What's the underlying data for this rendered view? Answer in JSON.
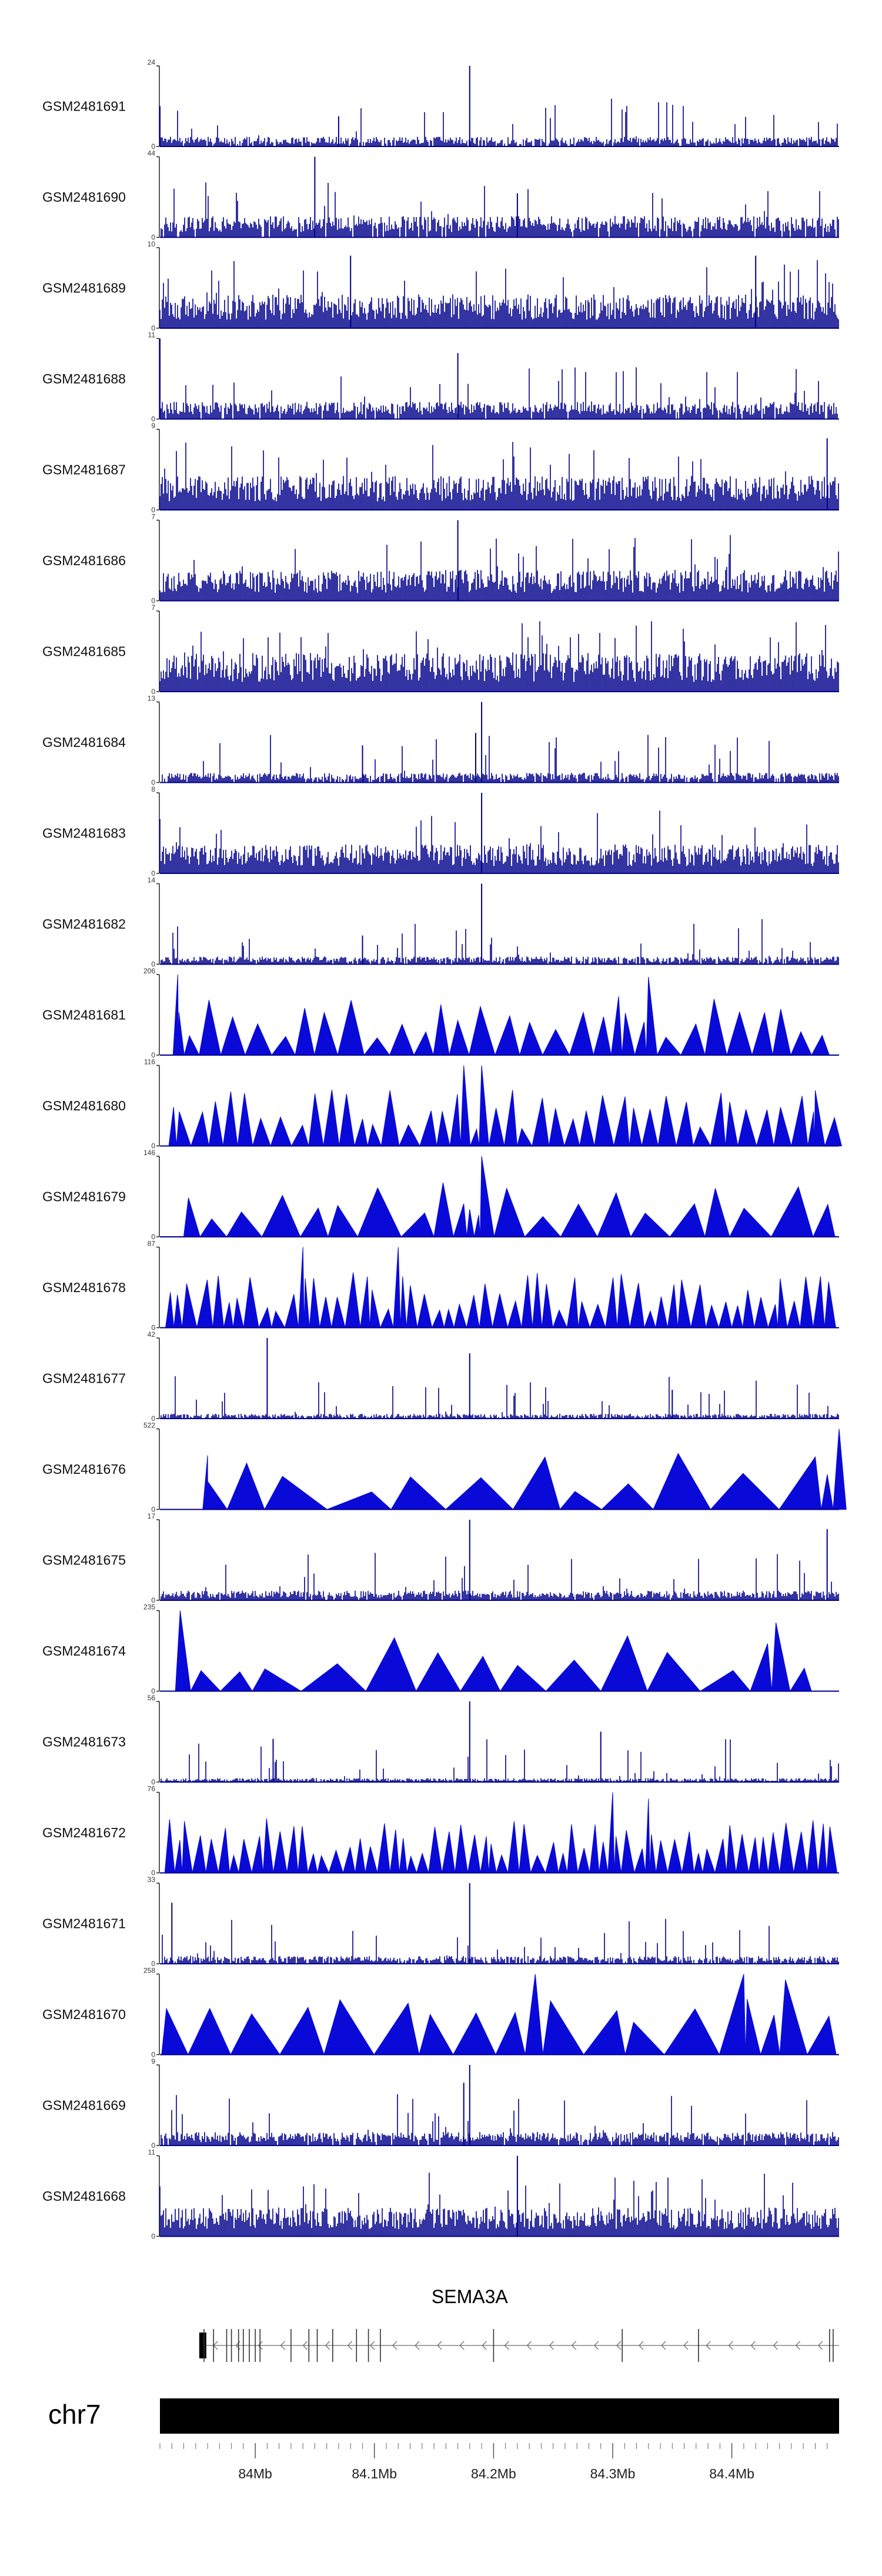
{
  "chart_data": {
    "type": "genome-coverage-tracks",
    "chromosome": "chr7",
    "region_mb": [
      83.92,
      84.49
    ],
    "gene": {
      "name": "SEMA3A",
      "strand": "-",
      "start_mb": 83.955,
      "end_mb": 84.49,
      "exons_mb": [
        83.957,
        83.965,
        83.976,
        83.98,
        83.986,
        83.99,
        83.995,
        84.0,
        84.004,
        84.03,
        84.045,
        84.052,
        84.065,
        84.085,
        84.095,
        84.105,
        84.2,
        84.308,
        84.372,
        84.482,
        84.485
      ]
    },
    "x_ticks": [
      {
        "value": 84.0,
        "label": "84Mb"
      },
      {
        "value": 84.1,
        "label": "84.1Mb"
      },
      {
        "value": 84.2,
        "label": "84.2Mb"
      },
      {
        "value": 84.3,
        "label": "84.3Mb"
      },
      {
        "value": 84.4,
        "label": "84.4Mb"
      }
    ],
    "tracks": [
      {
        "sample": "GSM2481691",
        "ymax": 24,
        "ymin": 0,
        "style": "bar",
        "density": 0.9,
        "base": 0.1,
        "peaks": [
          [
            84.18,
            24
          ],
          [
            83.92,
            12
          ],
          [
            84.07,
            9
          ]
        ]
      },
      {
        "sample": "GSM2481690",
        "ymax": 44,
        "ymin": 0,
        "style": "bar",
        "density": 0.95,
        "base": 0.22,
        "peaks": [
          [
            84.05,
            44
          ],
          [
            84.22,
            24
          ]
        ]
      },
      {
        "sample": "GSM2481689",
        "ymax": 10,
        "ymin": 0,
        "style": "bar",
        "density": 1.0,
        "base": 0.35,
        "peaks": [
          [
            84.08,
            9
          ],
          [
            84.42,
            9
          ]
        ]
      },
      {
        "sample": "GSM2481688",
        "ymax": 11,
        "ymin": 0,
        "style": "bar",
        "density": 0.95,
        "base": 0.18,
        "peaks": [
          [
            83.92,
            11
          ],
          [
            84.17,
            9
          ]
        ]
      },
      {
        "sample": "GSM2481687",
        "ymax": 9,
        "ymin": 0,
        "style": "bar",
        "density": 1.0,
        "base": 0.35,
        "peaks": [
          [
            84.48,
            8
          ]
        ]
      },
      {
        "sample": "GSM2481686",
        "ymax": 7,
        "ymin": 0,
        "style": "bar",
        "density": 1.0,
        "base": 0.32,
        "peaks": [
          [
            84.17,
            7
          ]
        ]
      },
      {
        "sample": "GSM2481685",
        "ymax": 7,
        "ymin": 0,
        "style": "bar",
        "density": 1.0,
        "base": 0.4,
        "peaks": []
      },
      {
        "sample": "GSM2481684",
        "ymax": 13,
        "ymin": 0,
        "style": "bar",
        "density": 0.9,
        "base": 0.1,
        "peaks": [
          [
            84.19,
            13
          ],
          [
            84.185,
            8
          ],
          [
            84.09,
            6
          ]
        ]
      },
      {
        "sample": "GSM2481683",
        "ymax": 8,
        "ymin": 0,
        "style": "bar",
        "density": 1.0,
        "base": 0.3,
        "peaks": [
          [
            84.19,
            8
          ]
        ]
      },
      {
        "sample": "GSM2481682",
        "ymax": 14,
        "ymin": 0,
        "style": "bar",
        "density": 0.9,
        "base": 0.08,
        "peaks": [
          [
            84.19,
            14
          ],
          [
            84.09,
            5
          ]
        ]
      },
      {
        "sample": "GSM2481681",
        "ymax": 206,
        "ymin": 0,
        "style": "spike",
        "count": 30,
        "seed": 11,
        "peaks": [
          [
            83.935,
            206
          ],
          [
            84.33,
            200
          ],
          [
            84.305,
            150
          ]
        ]
      },
      {
        "sample": "GSM2481680",
        "ymax": 116,
        "ymin": 0,
        "style": "spike",
        "count": 42,
        "seed": 22,
        "peaks": [
          [
            84.175,
            116
          ],
          [
            84.19,
            116
          ],
          [
            84.47,
            80
          ]
        ]
      },
      {
        "sample": "GSM2481679",
        "ymax": 146,
        "ymin": 0,
        "style": "spike",
        "count": 20,
        "seed": 33,
        "peaks": [
          [
            84.19,
            146
          ],
          [
            84.175,
            60
          ],
          [
            84.18,
            50
          ]
        ]
      },
      {
        "sample": "GSM2481678",
        "ymax": 87,
        "ymin": 0,
        "style": "spike",
        "count": 55,
        "seed": 44,
        "peaks": [
          [
            84.04,
            87
          ],
          [
            84.12,
            87
          ]
        ]
      },
      {
        "sample": "GSM2481677",
        "ymax": 42,
        "ymin": 0,
        "style": "bar",
        "density": 0.85,
        "base": 0.05,
        "peaks": [
          [
            84.01,
            42
          ],
          [
            84.18,
            34
          ],
          [
            84.35,
            15
          ]
        ]
      },
      {
        "sample": "GSM2481676",
        "ymax": 522,
        "ymin": 0,
        "style": "spike",
        "count": 12,
        "seed": 55,
        "peaks": [
          [
            83.96,
            350
          ],
          [
            84.47,
            340
          ],
          [
            84.49,
            522
          ]
        ]
      },
      {
        "sample": "GSM2481675",
        "ymax": 17,
        "ymin": 0,
        "style": "bar",
        "density": 0.95,
        "base": 0.1,
        "peaks": [
          [
            84.18,
            17
          ],
          [
            84.48,
            15
          ]
        ]
      },
      {
        "sample": "GSM2481674",
        "ymax": 235,
        "ymin": 0,
        "style": "spike",
        "count": 14,
        "seed": 66,
        "peaks": [
          [
            83.937,
            235
          ],
          [
            84.437,
            200
          ]
        ]
      },
      {
        "sample": "GSM2481673",
        "ymax": 56,
        "ymin": 0,
        "style": "bar",
        "density": 0.85,
        "base": 0.04,
        "peaks": [
          [
            84.18,
            56
          ],
          [
            84.015,
            30
          ],
          [
            84.29,
            35
          ]
        ]
      },
      {
        "sample": "GSM2481672",
        "ymax": 76,
        "ymin": 0,
        "style": "spike",
        "count": 60,
        "seed": 77,
        "peaks": [
          [
            84.3,
            76
          ],
          [
            84.33,
            70
          ]
        ]
      },
      {
        "sample": "GSM2481671",
        "ymax": 33,
        "ymin": 0,
        "style": "bar",
        "density": 0.85,
        "base": 0.08,
        "peaks": [
          [
            84.18,
            33
          ],
          [
            83.93,
            25
          ]
        ]
      },
      {
        "sample": "GSM2481670",
        "ymax": 258,
        "ymin": 0,
        "style": "spike",
        "count": 16,
        "seed": 88,
        "peaks": [
          [
            84.235,
            258
          ],
          [
            84.41,
            258
          ],
          [
            84.445,
            240
          ]
        ]
      },
      {
        "sample": "GSM2481669",
        "ymax": 9,
        "ymin": 0,
        "style": "bar",
        "density": 0.95,
        "base": 0.14,
        "peaks": [
          [
            84.18,
            9
          ],
          [
            84.175,
            7
          ]
        ]
      },
      {
        "sample": "GSM2481668",
        "ymax": 11,
        "ymin": 0,
        "style": "bar",
        "density": 1.0,
        "base": 0.3,
        "peaks": [
          [
            84.22,
            11
          ]
        ]
      }
    ],
    "colors": {
      "track": "#0a0ad8",
      "bar": "#00008b",
      "axis": "#222222",
      "ideogram": "#000000"
    }
  }
}
